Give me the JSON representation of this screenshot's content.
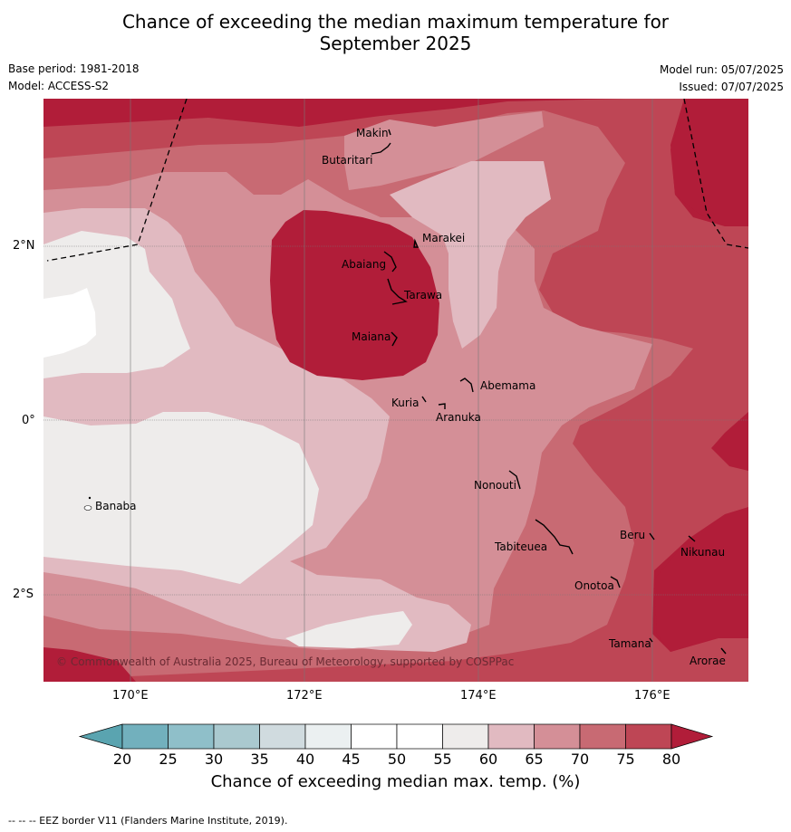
{
  "title_line1": "Chance of exceeding the median maximum temperature for",
  "title_line2": "September 2025",
  "base_period": "Base period: 1981-2018",
  "model": "Model: ACCESS-S2",
  "model_run": "Model run: 05/07/2025",
  "issued": "Issued: 07/07/2025",
  "lat_labels": [
    "2°N",
    "0°",
    "2°S"
  ],
  "lon_labels": [
    "170°E",
    "172°E",
    "174°E",
    "176°E"
  ],
  "places": [
    "Makin",
    "Butaritari",
    "Marakei",
    "Abaiang",
    "Tarawa",
    "Maiana",
    "Abemama",
    "Kuria",
    "Aranuka",
    "Banaba",
    "Nonouti",
    "Tabiteuea",
    "Beru",
    "Nikunau",
    "Onotoa",
    "Tamana",
    "Arorae"
  ],
  "copyright": "© Commonwealth of Australia 2025, Bureau of Meteorology, supported by COSPPac",
  "colorbar": {
    "ticks": [
      "20",
      "25",
      "30",
      "35",
      "40",
      "45",
      "50",
      "55",
      "60",
      "65",
      "70",
      "75",
      "80"
    ],
    "colors": [
      "#5aa4b0",
      "#72b0bd",
      "#8fbfc9",
      "#aac9cf",
      "#d0dbdf",
      "#ebf0f1",
      "#ffffff",
      "#ffffff",
      "#eeeceb",
      "#e1bac1",
      "#d48f97",
      "#c86a73",
      "#be4655",
      "#b11d39"
    ],
    "label": "Chance of exceeding median max. temp. (%)"
  },
  "footnote": "--  --  -- EEZ border V11 (Flanders Marine Institute, 2019)."
}
